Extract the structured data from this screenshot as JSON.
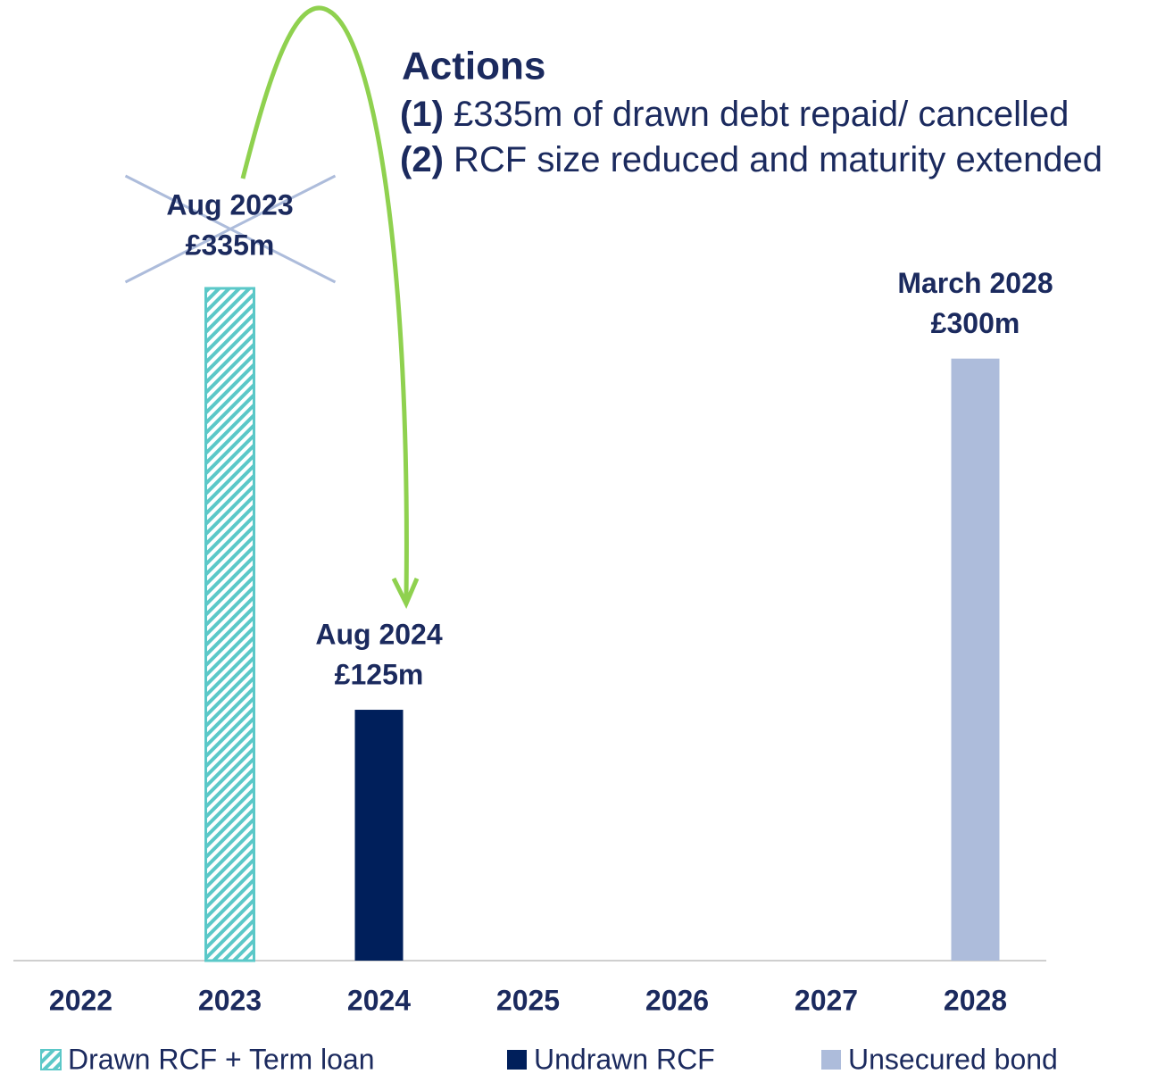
{
  "chart_data": {
    "type": "bar",
    "categories": [
      "2022",
      "2023",
      "2024",
      "2025",
      "2026",
      "2027",
      "2028"
    ],
    "ylim": [
      0,
      335
    ],
    "series": [
      {
        "name": "Drawn RCF + Term loan",
        "color": "#5bc8c8",
        "pattern": "hatch",
        "values": [
          null,
          335,
          null,
          null,
          null,
          null,
          null
        ],
        "value_labels": [
          null,
          "£335m",
          null,
          null,
          null,
          null,
          null
        ],
        "date_labels": [
          null,
          "Aug 2023",
          null,
          null,
          null,
          null,
          null
        ],
        "crossed_out": true
      },
      {
        "name": "Undrawn RCF",
        "color": "#001f5b",
        "values": [
          null,
          null,
          125,
          null,
          null,
          null,
          null
        ],
        "value_labels": [
          null,
          null,
          "£125m",
          null,
          null,
          null,
          null
        ],
        "date_labels": [
          null,
          null,
          "Aug 2024",
          null,
          null,
          null,
          null
        ]
      },
      {
        "name": "Unsecured bond",
        "color": "#adbcdb",
        "values": [
          null,
          null,
          null,
          null,
          null,
          null,
          300
        ],
        "value_labels": [
          null,
          null,
          null,
          null,
          null,
          null,
          "£300m"
        ],
        "date_labels": [
          null,
          null,
          null,
          null,
          null,
          null,
          "March 2028"
        ]
      }
    ],
    "annotations": {
      "title": "Actions",
      "items": [
        {
          "number": "(1)",
          "text": "£335m of drawn debt repaid/ cancelled"
        },
        {
          "number": "(2)",
          "text": "RCF size reduced and maturity extended"
        }
      ]
    }
  }
}
